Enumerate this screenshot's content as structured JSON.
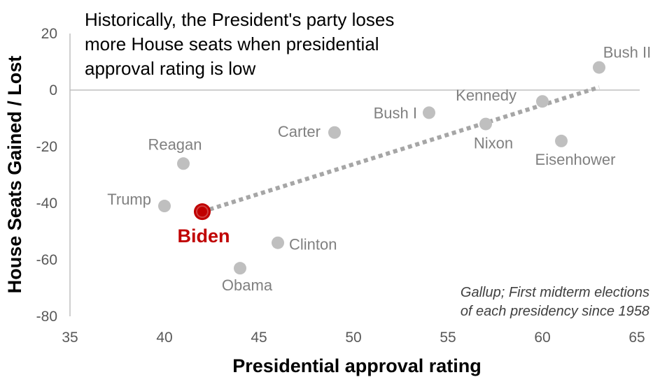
{
  "chart_data": {
    "type": "scatter",
    "title_lines": [
      "Historically, the President's party loses",
      "more House seats when presidential",
      "approval rating is low"
    ],
    "xlabel": "Presidential approval rating",
    "ylabel": "House Seats Gained / Lost",
    "xlim": [
      35,
      65
    ],
    "ylim": [
      -80,
      20
    ],
    "xticks": [
      35,
      40,
      45,
      50,
      55,
      60,
      65
    ],
    "yticks": [
      20,
      0,
      -20,
      -40,
      -60,
      -80
    ],
    "grid": false,
    "points": [
      {
        "label": "Bush II",
        "x": 63,
        "y": 8
      },
      {
        "label": "Kennedy",
        "x": 60,
        "y": -4
      },
      {
        "label": "Bush I",
        "x": 54,
        "y": -8
      },
      {
        "label": "Nixon",
        "x": 57,
        "y": -12
      },
      {
        "label": "Carter",
        "x": 49,
        "y": -15
      },
      {
        "label": "Eisenhower",
        "x": 61,
        "y": -18
      },
      {
        "label": "Reagan",
        "x": 41,
        "y": -26
      },
      {
        "label": "Trump",
        "x": 40,
        "y": -41
      },
      {
        "label": "Biden",
        "x": 42,
        "y": -43,
        "highlight": true
      },
      {
        "label": "Clinton",
        "x": 46,
        "y": -54
      },
      {
        "label": "Obama",
        "x": 44,
        "y": -63
      }
    ],
    "trendline": {
      "style": "dotted",
      "x": [
        42,
        63
      ],
      "y": [
        -43,
        1
      ]
    },
    "source_lines": [
      "Gallup; First midterm elections",
      "of each presidency since 1958"
    ],
    "colors": {
      "point": "#bfbfbf",
      "highlight": "#c00000",
      "trendline": "#a6a6a6",
      "axis": "#bfbfbf"
    }
  }
}
